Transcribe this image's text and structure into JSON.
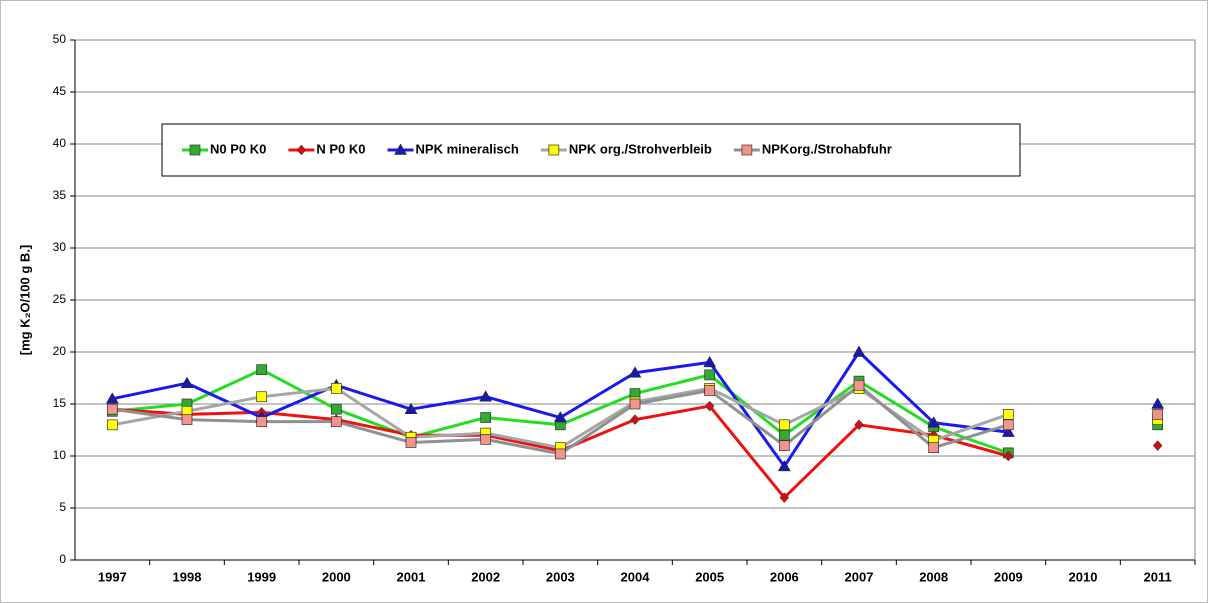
{
  "chart_data": {
    "type": "line",
    "y_label": "[mg K₂O/100 g B.]",
    "categories": [
      "1997",
      "1998",
      "1999",
      "2000",
      "2001",
      "2002",
      "2003",
      "2004",
      "2005",
      "2006",
      "2007",
      "2008",
      "2009",
      "2010",
      "2011"
    ],
    "ylim": [
      0,
      50
    ],
    "yticks": [
      0,
      5,
      10,
      15,
      20,
      25,
      30,
      35,
      40,
      45,
      50
    ],
    "grid": true,
    "legend": "upper left",
    "series": [
      {
        "name": "N0 P0 K0",
        "color": "#22dd22",
        "marker_color": "#33aa33",
        "marker": "square",
        "values": [
          14.3,
          15.0,
          18.3,
          14.5,
          11.8,
          13.7,
          13.0,
          16.0,
          17.8,
          12.0,
          17.2,
          12.8,
          10.3,
          null,
          13.0
        ]
      },
      {
        "name": "N P0 K0",
        "color": "#ee1111",
        "marker_color": "#cc1111",
        "marker": "diamond",
        "values": [
          14.5,
          14.0,
          14.2,
          13.5,
          12.0,
          12.0,
          10.5,
          13.5,
          14.8,
          6.0,
          13.0,
          12.0,
          10.0,
          null,
          11.0
        ]
      },
      {
        "name": "NPK mineralisch",
        "color": "#1a1aee",
        "marker_color": "#1a1aaa",
        "marker": "triangle",
        "values": [
          15.5,
          17.0,
          13.7,
          16.8,
          14.5,
          15.7,
          13.7,
          18.0,
          19.0,
          9.0,
          20.0,
          13.2,
          12.3,
          null,
          15.0
        ]
      },
      {
        "name": "NPK org./Strohverbleib",
        "color": "#a6a6a6",
        "marker_color": "#ffff00",
        "marker": "square",
        "values": [
          13.0,
          14.3,
          15.7,
          16.5,
          11.8,
          12.2,
          10.8,
          15.2,
          16.5,
          13.0,
          16.5,
          11.5,
          14.0,
          null,
          13.5
        ]
      },
      {
        "name": "NPKorg./Strohabfuhr",
        "color": "#909090",
        "marker_color": "#f4928c",
        "marker": "square",
        "values": [
          14.5,
          13.5,
          13.3,
          13.3,
          11.3,
          11.6,
          10.2,
          15.0,
          16.3,
          11.0,
          16.8,
          10.8,
          13.0,
          null,
          14.0
        ]
      }
    ]
  }
}
